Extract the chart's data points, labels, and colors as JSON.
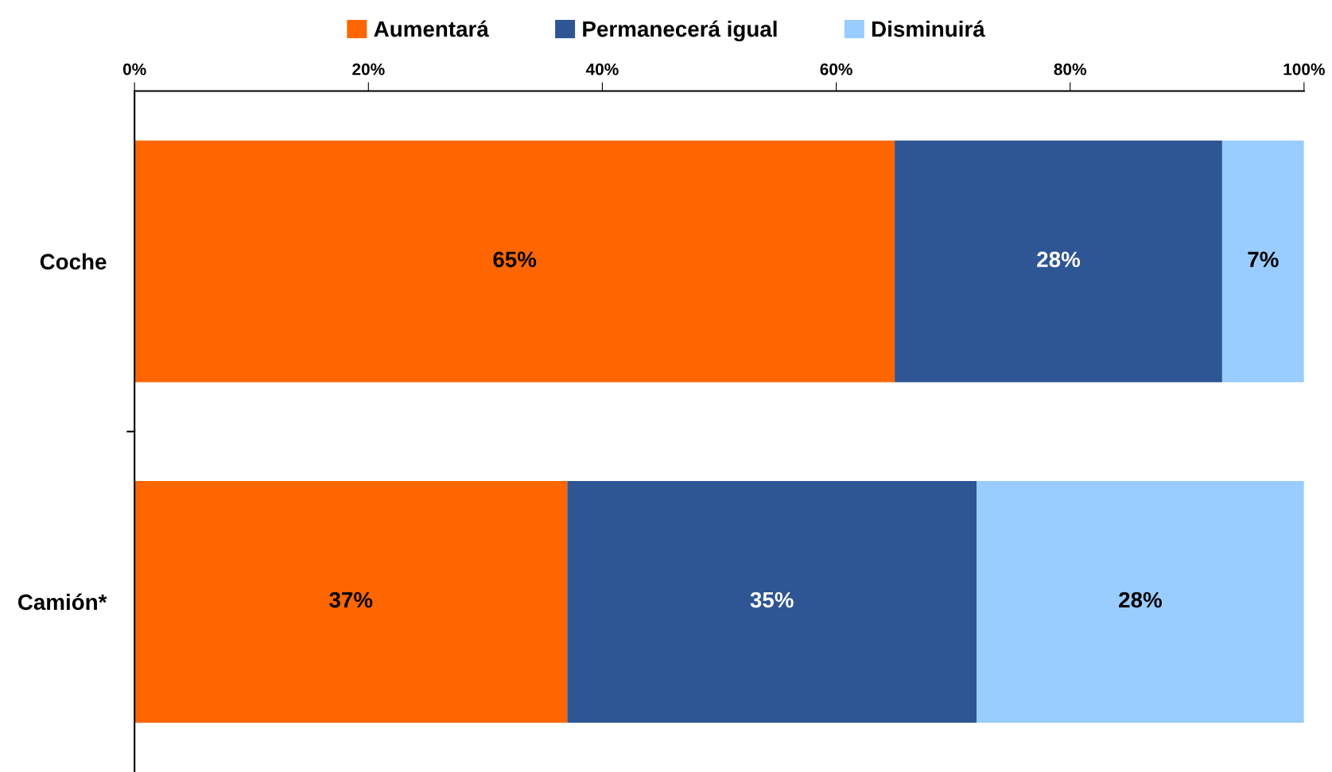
{
  "chart_data": {
    "type": "bar",
    "orientation": "horizontal",
    "stacked": true,
    "categories": [
      "Coche",
      "Camión*"
    ],
    "series": [
      {
        "name": "Aumentará",
        "color": "#ff6600",
        "values": [
          65,
          37
        ],
        "value_labels": [
          "65%",
          "37%"
        ]
      },
      {
        "name": "Permanecerá igual",
        "color": "#2e5594",
        "values": [
          28,
          35
        ],
        "value_labels": [
          "28%",
          "35%"
        ]
      },
      {
        "name": "Disminuirá",
        "color": "#99ccff",
        "values": [
          7,
          28
        ],
        "value_labels": [
          "7%",
          "28%"
        ]
      }
    ],
    "xlim": [
      0,
      100
    ],
    "xticks": [
      {
        "value": 0,
        "label": "0%"
      },
      {
        "value": 20,
        "label": "20%"
      },
      {
        "value": 40,
        "label": "40%"
      },
      {
        "value": 60,
        "label": "60%"
      },
      {
        "value": 80,
        "label": "80%"
      },
      {
        "value": 100,
        "label": "100%"
      }
    ],
    "grid": false,
    "legend": "top"
  }
}
